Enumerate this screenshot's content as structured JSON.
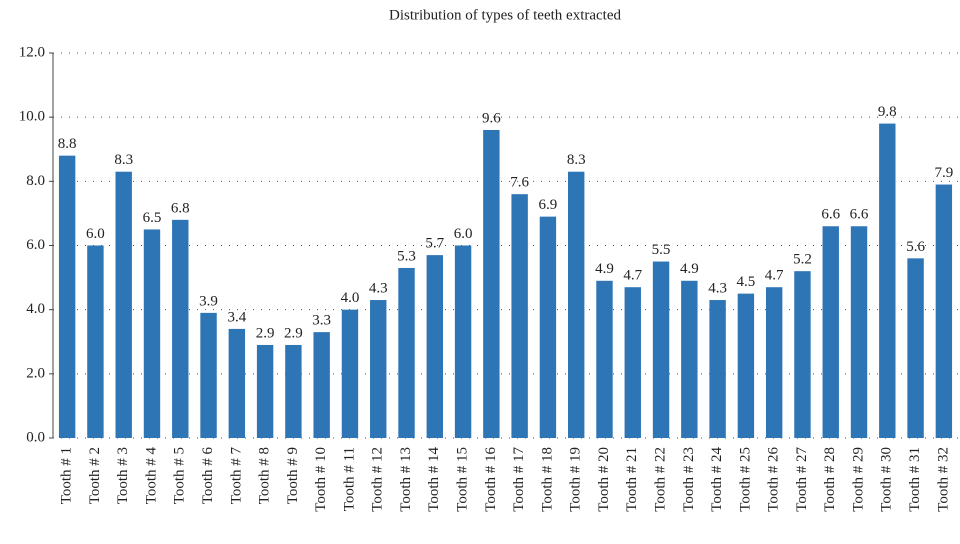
{
  "chart_data": {
    "type": "bar",
    "title": "Distribution of types of teeth extracted",
    "categories": [
      "Tooth # 1",
      "Tooth # 2",
      "Tooth # 3",
      "Tooth # 4",
      "Tooth # 5",
      "Tooth # 6",
      "Tooth # 7",
      "Tooth # 8",
      "Tooth # 9",
      "Tooth # 10",
      "Tooth # 11",
      "Tooth # 12",
      "Tooth # 13",
      "Tooth # 14",
      "Tooth # 15",
      "Tooth # 16",
      "Tooth # 17",
      "Tooth # 18",
      "Tooth # 19",
      "Tooth # 20",
      "Tooth # 21",
      "Tooth # 22",
      "Tooth # 23",
      "Tooth # 24",
      "Tooth # 25",
      "Tooth # 26",
      "Tooth # 27",
      "Tooth # 28",
      "Tooth # 29",
      "Tooth # 30",
      "Tooth # 31",
      "Tooth # 32"
    ],
    "values": [
      8.8,
      6.0,
      8.3,
      6.5,
      6.8,
      3.9,
      3.4,
      2.9,
      2.9,
      3.3,
      4.0,
      4.3,
      5.3,
      5.7,
      6.0,
      9.6,
      7.6,
      6.9,
      8.3,
      4.9,
      4.7,
      5.5,
      4.9,
      4.3,
      4.5,
      4.7,
      5.2,
      6.6,
      6.6,
      9.8,
      5.6,
      7.9
    ],
    "value_labels": [
      "8.8",
      "6.0",
      "8.3",
      "6.5",
      "6.8",
      "3.9",
      "3.4",
      "2.9",
      "2.9",
      "3.3",
      "4.0",
      "4.3",
      "5.3",
      "5.7",
      "6.0",
      "9.6",
      "7.6",
      "6.9",
      "8.3",
      "4.9",
      "4.7",
      "5.5",
      "4.9",
      "4.3",
      "4.5",
      "4.7",
      "5.2",
      "6.6",
      "6.6",
      "9.8",
      "5.6",
      "7.9"
    ],
    "color": "#2e75b6",
    "ylim": [
      0,
      12
    ],
    "yticks": [
      {
        "value": 0,
        "label": "0.0"
      },
      {
        "value": 2,
        "label": "2.0"
      },
      {
        "value": 4,
        "label": "4.0"
      },
      {
        "value": 6,
        "label": "6.0"
      },
      {
        "value": 8,
        "label": "8.0"
      },
      {
        "value": 10,
        "label": "10.0"
      },
      {
        "value": 12,
        "label": "12.0"
      }
    ],
    "grid": true
  }
}
